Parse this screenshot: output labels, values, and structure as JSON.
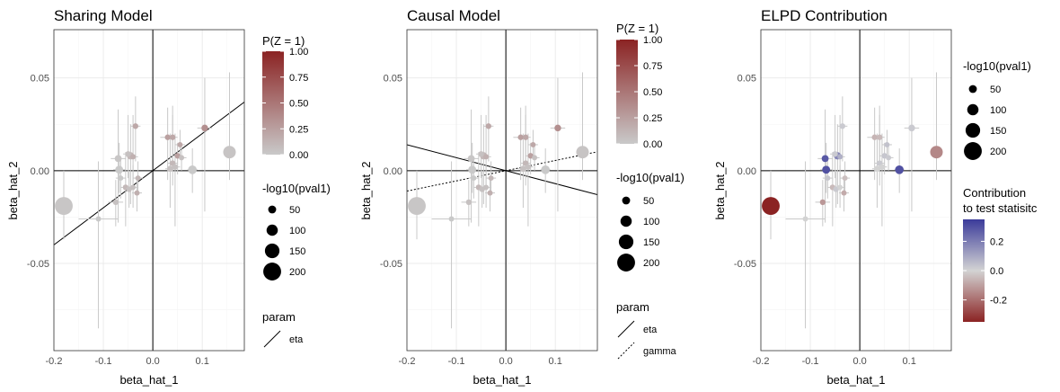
{
  "chart_data": [
    {
      "type": "scatter",
      "title": "Sharing Model",
      "xlabel": "beta_hat_1",
      "ylabel": "beta_hat_2",
      "xlim": [
        -0.2,
        0.185
      ],
      "ylim": [
        -0.097,
        0.076
      ],
      "x_ticks": [
        "-0.2",
        "-0.1",
        "0.0",
        "0.1"
      ],
      "y_ticks": [
        "-0.05",
        "0.00",
        "0.05"
      ],
      "color_mode": "pz",
      "lines": [
        {
          "param": "eta",
          "slope": 0.2,
          "style": "solid"
        }
      ],
      "legends": {
        "color": {
          "title": "P(Z = 1)",
          "labels": [
            "1.00",
            "0.75",
            "0.50",
            "0.25",
            "0.00"
          ],
          "low": "#c9c9c9",
          "high": "#8b2323"
        },
        "size": {
          "title": "-log10(pval1)",
          "labels": [
            "50",
            "100",
            "150",
            "200"
          ]
        },
        "line": {
          "title": "param",
          "items": [
            {
              "label": "eta",
              "style": "solid"
            }
          ]
        }
      }
    },
    {
      "type": "scatter",
      "title": "Causal Model",
      "xlabel": "beta_hat_1",
      "ylabel": "beta_hat_2",
      "xlim": [
        -0.2,
        0.185
      ],
      "ylim": [
        -0.097,
        0.076
      ],
      "x_ticks": [
        "-0.2",
        "-0.1",
        "0.0",
        "0.1"
      ],
      "y_ticks": [
        "-0.05",
        "0.00",
        "0.05"
      ],
      "color_mode": "pz",
      "lines": [
        {
          "param": "eta",
          "slope": -0.07,
          "style": "solid"
        },
        {
          "param": "gamma",
          "slope": 0.055,
          "style": "dotted"
        }
      ],
      "legends": {
        "color": {
          "title": "P(Z = 1)",
          "labels": [
            "1.00",
            "0.75",
            "0.50",
            "0.25",
            "0.00"
          ],
          "low": "#c9c9c9",
          "high": "#8b2323"
        },
        "size": {
          "title": "-log10(pval1)",
          "labels": [
            "50",
            "100",
            "150",
            "200"
          ]
        },
        "line": {
          "title": "param",
          "items": [
            {
              "label": "eta",
              "style": "solid"
            },
            {
              "label": "gamma",
              "style": "dotted"
            }
          ]
        }
      }
    },
    {
      "type": "scatter",
      "title": "ELPD Contribution",
      "xlabel": "beta_hat_1",
      "ylabel": "beta_hat_2",
      "xlim": [
        -0.2,
        0.185
      ],
      "ylim": [
        -0.097,
        0.076
      ],
      "x_ticks": [
        "-0.2",
        "-0.1",
        "0.0",
        "0.1"
      ],
      "y_ticks": [
        "-0.05",
        "0.00",
        "0.05"
      ],
      "color_mode": "contribution",
      "lines": [],
      "legends": {
        "size": {
          "title": "-log10(pval1)",
          "labels": [
            "50",
            "100",
            "150",
            "200"
          ]
        },
        "color": {
          "title_lines": [
            "Contribution",
            "to test statisitc"
          ],
          "labels": [
            "0.2",
            "0.0",
            "-0.2"
          ],
          "low": "#8b2323",
          "mid": "#d3d3d3",
          "high": "#3b3b9a"
        }
      }
    }
  ],
  "points": [
    {
      "x": -0.18,
      "y": -0.019,
      "xlo": -0.19,
      "xhi": -0.17,
      "ylo": -0.037,
      "yhi": 0.0,
      "s": 200,
      "pz": 0.02,
      "c": -0.35
    },
    {
      "x": -0.11,
      "y": -0.026,
      "xlo": -0.15,
      "xhi": -0.07,
      "ylo": -0.085,
      "yhi": 0.005,
      "s": 10,
      "pz": 0.0,
      "c": 0.0
    },
    {
      "x": -0.075,
      "y": -0.017,
      "xlo": -0.09,
      "xhi": -0.06,
      "ylo": -0.03,
      "yhi": -0.005,
      "s": 15,
      "pz": 0.05,
      "c": -0.12
    },
    {
      "x": -0.07,
      "y": 0.0065,
      "xlo": -0.085,
      "xhi": -0.055,
      "ylo": -0.028,
      "yhi": 0.033,
      "s": 35,
      "pz": 0.02,
      "c": 0.28
    },
    {
      "x": -0.068,
      "y": 0.0005,
      "xlo": -0.08,
      "xhi": -0.056,
      "ylo": -0.012,
      "yhi": 0.015,
      "s": 50,
      "pz": 0.0,
      "c": 0.3
    },
    {
      "x": -0.065,
      "y": -0.004,
      "xlo": -0.075,
      "xhi": -0.055,
      "ylo": -0.015,
      "yhi": 0.007,
      "s": 10,
      "pz": 0.0,
      "c": 0.03
    },
    {
      "x": -0.05,
      "y": 0.009,
      "xlo": -0.06,
      "xhi": -0.04,
      "ylo": -0.004,
      "yhi": 0.03,
      "s": 15,
      "pz": 0.05,
      "c": 0.02
    },
    {
      "x": -0.045,
      "y": 0.008,
      "xlo": -0.055,
      "xhi": -0.035,
      "ylo": -0.018,
      "yhi": 0.025,
      "s": 40,
      "pz": 0.1,
      "c": 0.18
    },
    {
      "x": -0.04,
      "y": 0.0075,
      "xlo": -0.05,
      "xhi": -0.03,
      "ylo": -0.01,
      "yhi": 0.03,
      "s": 10,
      "pz": 0.15,
      "c": 0.08
    },
    {
      "x": -0.035,
      "y": 0.024,
      "xlo": -0.045,
      "xhi": -0.025,
      "ylo": 0.005,
      "yhi": 0.04,
      "s": 15,
      "pz": 0.2,
      "c": 0.02
    },
    {
      "x": -0.055,
      "y": -0.009,
      "xlo": -0.065,
      "xhi": -0.045,
      "ylo": -0.03,
      "yhi": 0.01,
      "s": 15,
      "pz": 0.1,
      "c": -0.05
    },
    {
      "x": -0.048,
      "y": -0.01,
      "xlo": -0.058,
      "xhi": -0.038,
      "ylo": -0.02,
      "yhi": 0.0,
      "s": 15,
      "pz": 0.05,
      "c": 0.02
    },
    {
      "x": -0.04,
      "y": -0.009,
      "xlo": -0.05,
      "xhi": -0.03,
      "ylo": -0.02,
      "yhi": 0.003,
      "s": 10,
      "pz": 0.05,
      "c": 0.0
    },
    {
      "x": -0.03,
      "y": -0.004,
      "xlo": -0.04,
      "xhi": -0.02,
      "ylo": -0.012,
      "yhi": 0.005,
      "s": 10,
      "pz": 0.1,
      "c": -0.04
    },
    {
      "x": -0.032,
      "y": -0.012,
      "xlo": -0.042,
      "xhi": -0.022,
      "ylo": -0.022,
      "yhi": -0.003,
      "s": 10,
      "pz": 0.15,
      "c": -0.08
    },
    {
      "x": 0.03,
      "y": 0.018,
      "xlo": 0.015,
      "xhi": 0.045,
      "ylo": -0.005,
      "yhi": 0.034,
      "s": 15,
      "pz": 0.25,
      "c": -0.06
    },
    {
      "x": 0.04,
      "y": 0.018,
      "xlo": 0.03,
      "xhi": 0.05,
      "ylo": 0.0,
      "yhi": 0.035,
      "s": 15,
      "pz": 0.2,
      "c": -0.05
    },
    {
      "x": 0.035,
      "y": 0.001,
      "xlo": 0.025,
      "xhi": 0.045,
      "ylo": -0.02,
      "yhi": 0.02,
      "s": 20,
      "pz": 0.05,
      "c": 0.0
    },
    {
      "x": 0.04,
      "y": 0.004,
      "xlo": 0.03,
      "xhi": 0.05,
      "ylo": -0.008,
      "yhi": 0.03,
      "s": 15,
      "pz": 0.1,
      "c": 0.02
    },
    {
      "x": 0.05,
      "y": 0.008,
      "xlo": 0.04,
      "xhi": 0.06,
      "ylo": -0.002,
      "yhi": 0.015,
      "s": 15,
      "pz": 0.25,
      "c": 0.03
    },
    {
      "x": 0.055,
      "y": 0.014,
      "xlo": 0.045,
      "xhi": 0.065,
      "ylo": 0.007,
      "yhi": 0.022,
      "s": 10,
      "pz": 0.2,
      "c": 0.04
    },
    {
      "x": 0.058,
      "y": 0.007,
      "xlo": 0.048,
      "xhi": 0.068,
      "ylo": 0.0,
      "yhi": 0.014,
      "s": 10,
      "pz": 0.05,
      "c": 0.02
    },
    {
      "x": 0.045,
      "y": 0.002,
      "xlo": 0.035,
      "xhi": 0.055,
      "ylo": -0.03,
      "yhi": 0.02,
      "s": 15,
      "pz": 0.05,
      "c": 0.0
    },
    {
      "x": 0.08,
      "y": 0.0005,
      "xlo": 0.07,
      "xhi": 0.09,
      "ylo": -0.012,
      "yhi": 0.012,
      "s": 60,
      "pz": 0.0,
      "c": 0.3
    },
    {
      "x": 0.105,
      "y": 0.023,
      "xlo": 0.09,
      "xhi": 0.12,
      "ylo": -0.022,
      "yhi": 0.05,
      "s": 30,
      "pz": 0.35,
      "c": 0.02
    },
    {
      "x": 0.155,
      "y": 0.01,
      "xlo": 0.145,
      "xhi": 0.165,
      "ylo": -0.005,
      "yhi": 0.053,
      "s": 120,
      "pz": 0.03,
      "c": -0.15
    }
  ]
}
